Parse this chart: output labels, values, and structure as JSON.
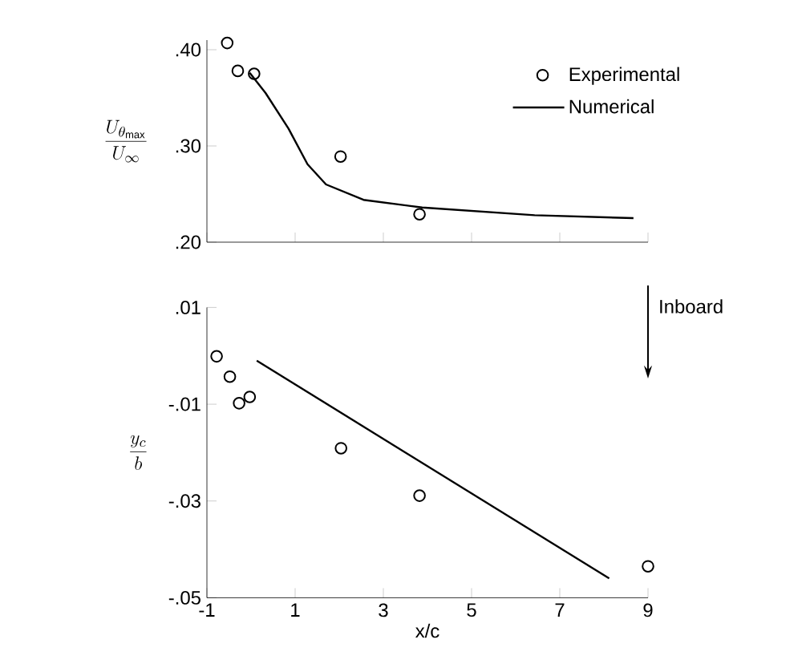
{
  "chart_data": [
    {
      "type": "scatter",
      "ylabel": "\\frac{U_{\\theta_{\\mathrm{max}}}}{U_{\\infty}}",
      "xlim": [
        -1,
        9
      ],
      "xticks": [
        -1,
        1,
        3,
        5,
        7,
        9
      ],
      "ylim": [
        0.2,
        0.41
      ],
      "yticks": [
        {
          "value": 0.2,
          "label": ".20"
        },
        {
          "value": 0.3,
          "label": ".30"
        },
        {
          "value": 0.4,
          "label": ".40"
        }
      ],
      "tick_labels": "y",
      "legend": "top right",
      "grid": false,
      "series": [
        {
          "name": "Experimental",
          "marker": "circle",
          "color": "#000000",
          "x": [
            -0.54,
            -0.3,
            0.07,
            2.03,
            3.82
          ],
          "values": [
            0.407,
            0.378,
            0.375,
            0.289,
            0.229
          ]
        },
        {
          "name": "Numerical",
          "type": "line",
          "marker": "none",
          "line_style": "solid",
          "color": "#000000",
          "x": [
            -0.03,
            0.33,
            0.85,
            1.28,
            1.7,
            2.55,
            3.88,
            6.43,
            8.67
          ],
          "values": [
            0.376,
            0.355,
            0.318,
            0.281,
            0.26,
            0.244,
            0.236,
            0.228,
            0.225
          ]
        }
      ]
    },
    {
      "type": "scatter",
      "ylabel": "\\frac{y_c}{b}",
      "xlabel": "x/c",
      "xlim": [
        -1,
        9
      ],
      "xticks": [
        -1,
        1,
        3,
        5,
        7,
        9
      ],
      "ylim": [
        -0.05,
        0.01
      ],
      "yticks": [
        {
          "value": -0.05,
          "label": "-.05"
        },
        {
          "value": -0.03,
          "label": "-.03"
        },
        {
          "value": -0.01,
          "label": "-.01"
        },
        {
          "value": 0.01,
          "label": ".01"
        }
      ],
      "grid": false,
      "annotations": [
        "Inboard"
      ],
      "series": [
        {
          "marker": "circle",
          "color": "#000000",
          "x": [
            -0.78,
            -0.48,
            -0.27,
            -0.03,
            2.04,
            3.82,
            9.0
          ],
          "values": [
            -0.0001,
            -0.0043,
            -0.0098,
            -0.0085,
            -0.0191,
            -0.0289,
            -0.0435
          ]
        },
        {
          "type": "line",
          "marker": "none",
          "line_style": "solid",
          "color": "#000000",
          "x": [
            0.13,
            8.12
          ],
          "values": [
            -0.001,
            -0.046
          ]
        }
      ]
    }
  ]
}
